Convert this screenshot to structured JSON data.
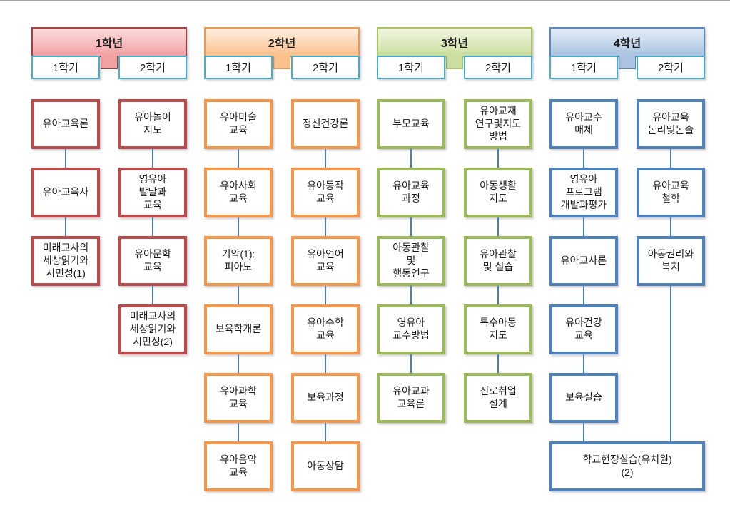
{
  "page": {
    "background": "#ffffff",
    "top_rule_color": "#a6a6a6"
  },
  "styles": {
    "semester_border": "#4bacc6",
    "connector_color": "#4a7ebb",
    "text_color": "#1a1a1a"
  },
  "years": [
    {
      "label": "1학년",
      "colors": {
        "header_border": "#a04345",
        "header_top": "#fbdcdc",
        "header_bottom": "#f2a2a4",
        "course_border": "#be4b4c"
      },
      "semesters": [
        {
          "label": "1학기",
          "courses": [
            [
              "유아교육론"
            ],
            [
              "유아교육사"
            ],
            [
              "미래교사의",
              "세상읽기와",
              "시민성(1)"
            ]
          ]
        },
        {
          "label": "2학기",
          "courses": [
            [
              "유아놀이",
              "지도"
            ],
            [
              "영유아",
              "발달과",
              "교육"
            ],
            [
              "유아문학",
              "교육"
            ],
            [
              "미래교사의",
              "세상읽기와",
              "시민성(2)"
            ]
          ]
        }
      ]
    },
    {
      "label": "2학년",
      "colors": {
        "header_border": "#ec9a52",
        "header_top": "#fdefe0",
        "header_bottom": "#fbc18d",
        "course_border": "#f79646"
      },
      "semesters": [
        {
          "label": "1학기",
          "courses": [
            [
              "유아미술",
              "교육"
            ],
            [
              "유아사회",
              "교육"
            ],
            [
              "기악(1):",
              "피아노"
            ],
            [
              "보육학개론"
            ],
            [
              "유아과학",
              "교육"
            ],
            [
              "유아음악",
              "교육"
            ]
          ]
        },
        {
          "label": "2학기",
          "courses": [
            [
              "정신건강론"
            ],
            [
              "유아동작",
              "교육"
            ],
            [
              "유아언어",
              "교육"
            ],
            [
              "유아수학",
              "교육"
            ],
            [
              "보육과정"
            ],
            [
              "아동상담"
            ]
          ]
        }
      ]
    },
    {
      "label": "3학년",
      "colors": {
        "header_border": "#a9c663",
        "header_top": "#f1f6e2",
        "header_bottom": "#cbde9f",
        "course_border": "#9bbb59"
      },
      "semesters": [
        {
          "label": "1학기",
          "courses": [
            [
              "부모교육"
            ],
            [
              "유아교육",
              "과정"
            ],
            [
              "아동관찰",
              "및",
              "행동연구"
            ],
            [
              "영유아",
              "교수방법"
            ],
            [
              "유아교과",
              "교육론"
            ]
          ]
        },
        {
          "label": "2학기",
          "courses": [
            [
              "유아교재",
              "연구및지도",
              "방법"
            ],
            [
              "아동생활",
              "지도"
            ],
            [
              "유아관찰",
              "및 실습"
            ],
            [
              "특수아동",
              "지도"
            ],
            [
              "진로취업",
              "설계"
            ]
          ]
        }
      ]
    },
    {
      "label": "4학년",
      "colors": {
        "header_border": "#5a88be",
        "header_top": "#e4edf6",
        "header_bottom": "#a9c3e0",
        "course_border": "#4f81bd"
      },
      "semesters": [
        {
          "label": "1학기",
          "courses": [
            [
              "유아교수",
              "매체"
            ],
            [
              "영유아",
              "프로그램",
              "개발과평가"
            ],
            [
              "유아교사론"
            ],
            [
              "유아건강",
              "교육"
            ],
            [
              "보육실습"
            ]
          ]
        },
        {
          "label": "2학기",
          "courses": [
            [
              "유아교육",
              "논리및논술"
            ],
            [
              "유아교육",
              "철학"
            ],
            [
              "아동권리와",
              "복지"
            ]
          ]
        }
      ],
      "shared_course": [
        "학교현장실습(유치원)",
        "(2)"
      ]
    }
  ]
}
